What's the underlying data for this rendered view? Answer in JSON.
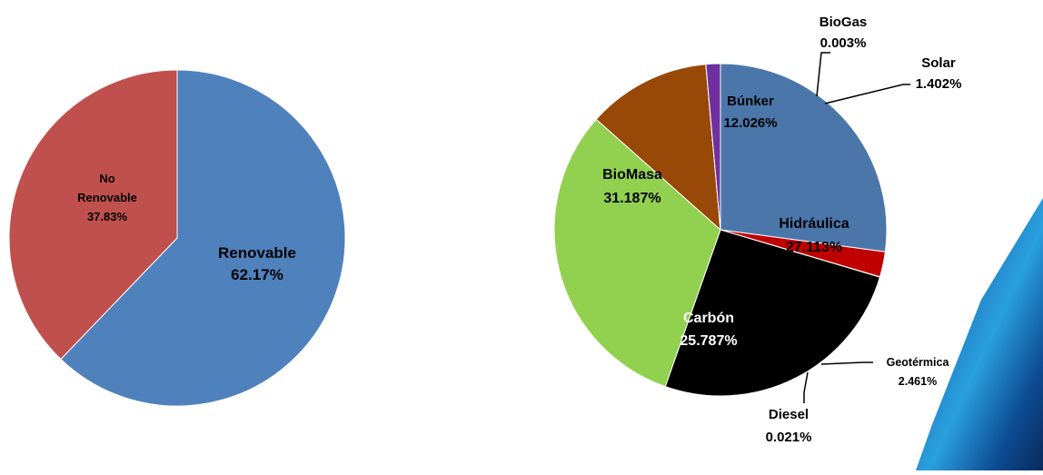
{
  "chart_data": [
    {
      "type": "pie",
      "title": "",
      "slices": [
        {
          "name": "Renovable",
          "value": 62.17,
          "value_label": "62.17%",
          "color": "#4f81bd"
        },
        {
          "name_lines": [
            "No",
            "Renovable"
          ],
          "value": 37.83,
          "value_label": "37.83%",
          "color": "#c0504d"
        }
      ]
    },
    {
      "type": "pie",
      "title": "",
      "slices": [
        {
          "name": "Hidráulica",
          "value": 27.113,
          "value_label": "27.113%",
          "color": "#4a76aa"
        },
        {
          "name": "Geotérmica",
          "value": 2.461,
          "value_label": "2.461%",
          "color": "#c00000"
        },
        {
          "name": "Diesel",
          "value": 0.021,
          "value_label": "0.021%",
          "color": "#7f0000"
        },
        {
          "name": "Carbón",
          "value": 25.787,
          "value_label": "25.787%",
          "color": "#000000"
        },
        {
          "name": "BioMasa",
          "value": 31.187,
          "value_label": "31.187%",
          "color": "#92d050"
        },
        {
          "name": "Búnker",
          "value": 12.026,
          "value_label": "12.026%",
          "color": "#984807"
        },
        {
          "name": "BioGas",
          "value": 0.003,
          "value_label": "0.003%",
          "color": "#9bbb59"
        },
        {
          "name": "Solar",
          "value": 1.402,
          "value_label": "1.402%",
          "color": "#7030a0"
        }
      ]
    }
  ]
}
